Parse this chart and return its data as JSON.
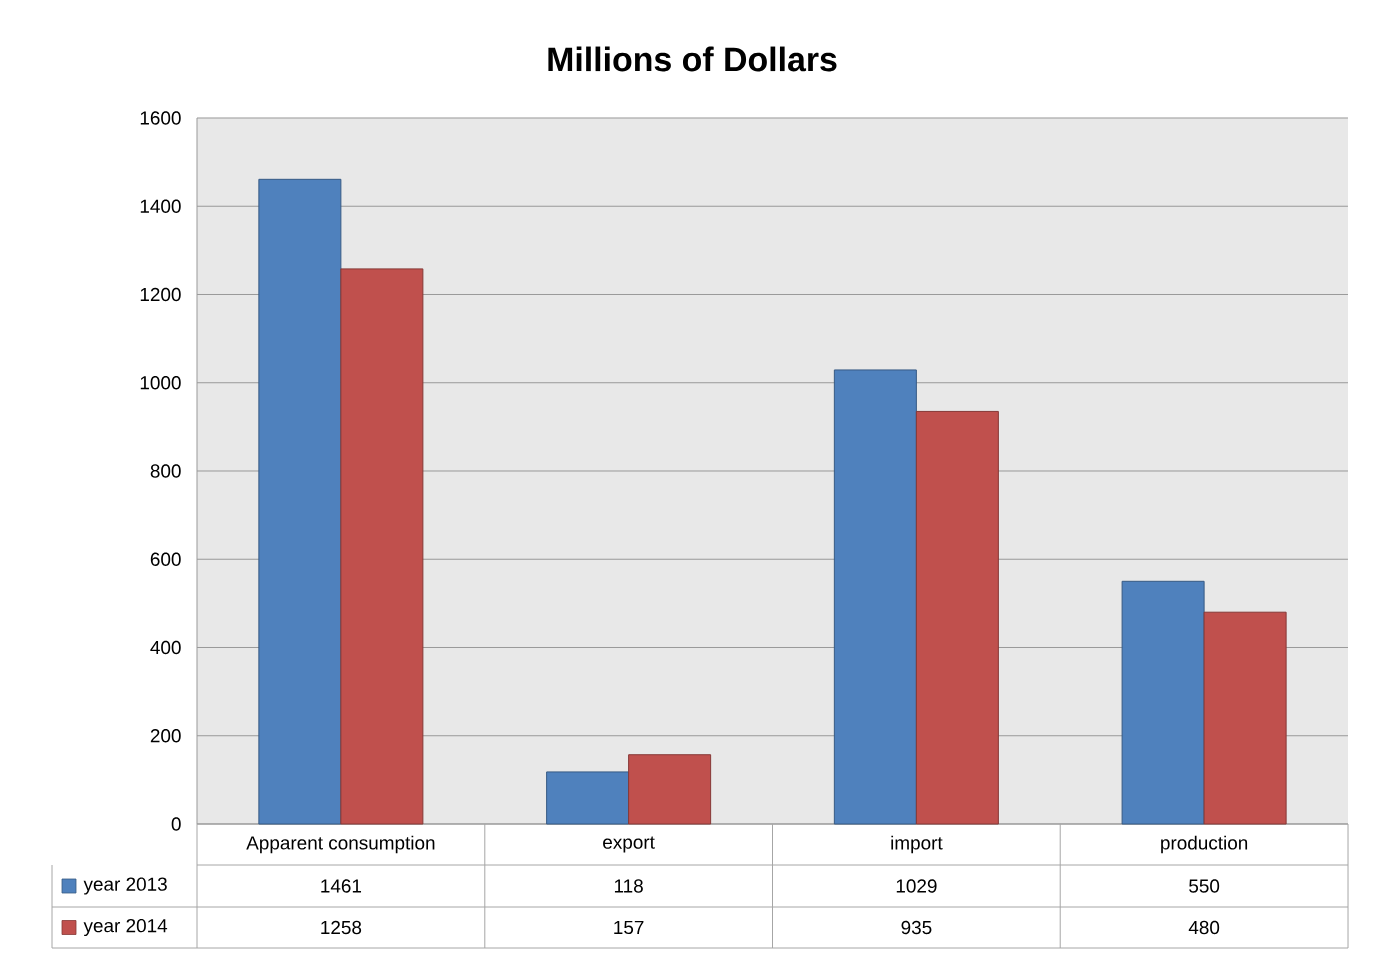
{
  "chart_data": {
    "type": "bar",
    "title": "Millions of Dollars",
    "categories": [
      "Apparent consumption",
      "export",
      "import",
      "production"
    ],
    "series": [
      {
        "name": "year 2013",
        "color": "#4f81bd",
        "values": [
          1461,
          118,
          1029,
          550
        ]
      },
      {
        "name": "year 2014",
        "color": "#c0504d",
        "values": [
          1258,
          157,
          935,
          480
        ]
      }
    ],
    "ylim": [
      0,
      1600
    ],
    "yticks": [
      0,
      200,
      400,
      600,
      800,
      1000,
      1200,
      1400,
      1600
    ],
    "grid": "y",
    "legend": "bottom",
    "data_labels": true
  }
}
